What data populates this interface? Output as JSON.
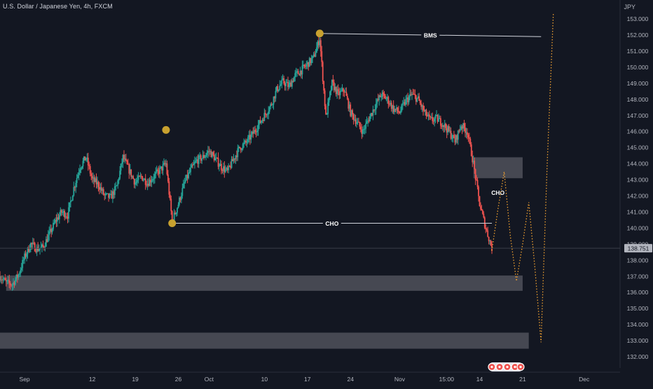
{
  "header": {
    "title": "U.S. Dollar / Japanese Yen, 4h, FXCM",
    "currency": "JPY"
  },
  "chart_data": {
    "type": "candlestick",
    "symbol": "U.S. Dollar / Japanese Yen",
    "interval": "4h",
    "source": "FXCM",
    "y_axis": {
      "unit": "JPY",
      "range": [
        131.5,
        153.6
      ],
      "ticks": [
        "153.000",
        "152.000",
        "151.000",
        "150.000",
        "149.000",
        "148.000",
        "147.000",
        "146.000",
        "145.000",
        "144.000",
        "143.000",
        "142.000",
        "141.000",
        "140.000",
        "139.000",
        "138.000",
        "137.000",
        "136.000",
        "135.000",
        "134.000",
        "133.000",
        "132.000"
      ]
    },
    "x_axis": {
      "range": [
        "2023-08-28",
        "2023-12-04"
      ],
      "ticks": [
        {
          "date": "2023-09-01",
          "label": "Sep"
        },
        {
          "date": "2023-09-12",
          "label": "12"
        },
        {
          "date": "2023-09-19",
          "label": "19"
        },
        {
          "date": "2023-09-26",
          "label": "26"
        },
        {
          "date": "2023-10-01",
          "label": "Oct"
        },
        {
          "date": "2023-10-10",
          "label": "10"
        },
        {
          "date": "2023-10-17",
          "label": "17"
        },
        {
          "date": "2023-10-24",
          "label": "24"
        },
        {
          "date": "2023-11-01",
          "label": "Nov"
        },
        {
          "date": "2023-11-08T15:00",
          "label": "15:00"
        },
        {
          "date": "2023-11-14",
          "label": "14"
        },
        {
          "date": "2023-11-21",
          "label": "21"
        },
        {
          "date": "2023-12-01",
          "label": "Dec"
        }
      ]
    },
    "price_path": [
      [
        "2023-08-28",
        137.0
      ],
      [
        "2023-08-29",
        136.6
      ],
      [
        "2023-08-30",
        136.5
      ],
      [
        "2023-08-31",
        137.1
      ],
      [
        "2023-09-01",
        138.2
      ],
      [
        "2023-09-02",
        139.0
      ],
      [
        "2023-09-03",
        138.7
      ],
      [
        "2023-09-04",
        138.8
      ],
      [
        "2023-09-05",
        139.6
      ],
      [
        "2023-09-06",
        140.4
      ],
      [
        "2023-09-07",
        141.0
      ],
      [
        "2023-09-08",
        140.8
      ],
      [
        "2023-09-09",
        142.5
      ],
      [
        "2023-09-10",
        143.8
      ],
      [
        "2023-09-11",
        144.4
      ],
      [
        "2023-09-12",
        143.0
      ],
      [
        "2023-09-13",
        142.7
      ],
      [
        "2023-09-14",
        142.0
      ],
      [
        "2023-09-15",
        141.9
      ],
      [
        "2023-09-16",
        142.6
      ],
      [
        "2023-09-17",
        144.4
      ],
      [
        "2023-09-18",
        143.6
      ],
      [
        "2023-09-19",
        142.8
      ],
      [
        "2023-09-20",
        143.2
      ],
      [
        "2023-09-21",
        142.8
      ],
      [
        "2023-09-22",
        143.2
      ],
      [
        "2023-09-23",
        143.6
      ],
      [
        "2023-09-24",
        144.0
      ],
      [
        "2023-09-25",
        140.4
      ],
      [
        "2023-09-26",
        141.5
      ],
      [
        "2023-09-27",
        142.8
      ],
      [
        "2023-09-28",
        143.6
      ],
      [
        "2023-09-29",
        144.2
      ],
      [
        "2023-09-30",
        144.4
      ],
      [
        "2023-10-01",
        144.8
      ],
      [
        "2023-10-02",
        144.3
      ],
      [
        "2023-10-03",
        143.8
      ],
      [
        "2023-10-04",
        143.5
      ],
      [
        "2023-10-05",
        144.3
      ],
      [
        "2023-10-06",
        145.0
      ],
      [
        "2023-10-07",
        145.3
      ],
      [
        "2023-10-08",
        145.8
      ],
      [
        "2023-10-09",
        146.4
      ],
      [
        "2023-10-10",
        147.0
      ],
      [
        "2023-10-11",
        147.6
      ],
      [
        "2023-10-12",
        148.6
      ],
      [
        "2023-10-13",
        149.1
      ],
      [
        "2023-10-14",
        148.8
      ],
      [
        "2023-10-15",
        149.5
      ],
      [
        "2023-10-16",
        149.8
      ],
      [
        "2023-10-17",
        150.2
      ],
      [
        "2023-10-18",
        150.6
      ],
      [
        "2023-10-19",
        151.8
      ],
      [
        "2023-10-20",
        146.9
      ],
      [
        "2023-10-21",
        149.0
      ],
      [
        "2023-10-22",
        148.3
      ],
      [
        "2023-10-23",
        148.6
      ],
      [
        "2023-10-24",
        147.2
      ],
      [
        "2023-10-25",
        146.6
      ],
      [
        "2023-10-26",
        146.0
      ],
      [
        "2023-10-27",
        146.8
      ],
      [
        "2023-10-28",
        147.6
      ],
      [
        "2023-10-29",
        148.3
      ],
      [
        "2023-10-30",
        148.0
      ],
      [
        "2023-10-31",
        147.4
      ],
      [
        "2023-11-01",
        147.2
      ],
      [
        "2023-11-02",
        147.9
      ],
      [
        "2023-11-03",
        148.3
      ],
      [
        "2023-11-04",
        148.0
      ],
      [
        "2023-11-05",
        147.2
      ],
      [
        "2023-11-06",
        146.7
      ],
      [
        "2023-11-07",
        146.8
      ],
      [
        "2023-11-08",
        146.5
      ],
      [
        "2023-11-09",
        146.0
      ],
      [
        "2023-11-10",
        145.4
      ],
      [
        "2023-11-11",
        146.4
      ],
      [
        "2023-11-12",
        146.0
      ],
      [
        "2023-11-13",
        144.0
      ],
      [
        "2023-11-14",
        141.5
      ],
      [
        "2023-11-15",
        140.0
      ],
      [
        "2023-11-16",
        138.75
      ]
    ],
    "last_price": "138.751",
    "swing_points": [
      {
        "date": "2023-09-24",
        "price": 146.1
      },
      {
        "date": "2023-09-25",
        "price": 140.3
      },
      {
        "date": "2023-10-19",
        "price": 152.1
      }
    ],
    "zones": [
      {
        "from": "2023-11-13",
        "to": "2023-11-21",
        "low": 143.1,
        "high": 144.4
      },
      {
        "from": "2023-08-29",
        "to": "2023-11-21",
        "low": 136.1,
        "high": 137.05
      },
      {
        "from": "2023-08-28",
        "to": "2023-11-22",
        "low": 132.5,
        "high": 133.5
      }
    ],
    "levels": [
      {
        "label": "BMS",
        "from": "2023-10-19",
        "to": "2023-11-24",
        "price_start": 152.1,
        "price_end": 151.9
      },
      {
        "label": "CHO",
        "from": "2023-09-25",
        "to": "2023-11-16",
        "price": 140.3
      }
    ],
    "annotations": [
      {
        "label": "CHO",
        "date": "2023-11-15",
        "price": 142.2
      }
    ],
    "projection": [
      [
        "2023-11-16",
        138.6
      ],
      [
        "2023-11-17",
        141.2
      ],
      [
        "2023-11-18",
        143.5
      ],
      [
        "2023-11-19",
        139.5
      ],
      [
        "2023-11-20",
        136.7
      ],
      [
        "2023-11-21",
        139.0
      ],
      [
        "2023-11-22",
        141.6
      ],
      [
        "2023-11-23",
        137.5
      ],
      [
        "2023-11-24",
        132.9
      ],
      [
        "2023-11-25",
        144.0
      ],
      [
        "2023-11-26",
        153.4
      ]
    ],
    "colors": {
      "background": "#131722",
      "up": "#26a69a",
      "down": "#ef5350",
      "zone": "#585a63",
      "swing_point": "#c8a12f",
      "projection": "#f0a030",
      "level_line": "#d1d4dc",
      "price_label_bg": "#b2b5be"
    }
  }
}
